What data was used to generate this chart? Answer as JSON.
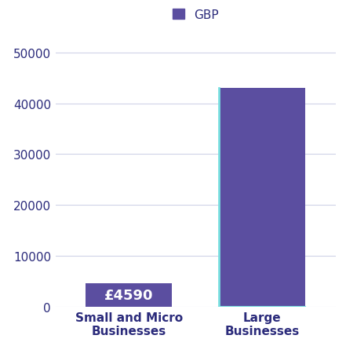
{
  "categories": [
    "Small and Micro\nBusinesses",
    "Large\nBusinesses"
  ],
  "values": [
    4590,
    43000
  ],
  "bar_color": "#5b4ea0",
  "cyan_color": "#7ae0e0",
  "bar_label": "£4590",
  "ylim": [
    0,
    52000
  ],
  "yticks": [
    0,
    10000,
    20000,
    30000,
    40000,
    50000
  ],
  "legend_label": "GBP",
  "legend_color": "#5b4ea0",
  "background_color": "#ffffff",
  "grid_color": "#d0d3e8",
  "tick_color": "#2b2b7b",
  "label_fontsize": 11,
  "tick_fontsize": 11,
  "bar_label_fontsize": 13,
  "bar_label_color": "#ffffff"
}
